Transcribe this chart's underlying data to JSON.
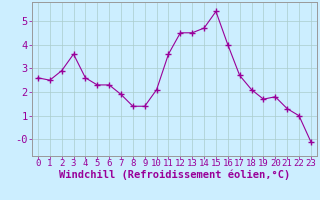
{
  "x": [
    0,
    1,
    2,
    3,
    4,
    5,
    6,
    7,
    8,
    9,
    10,
    11,
    12,
    13,
    14,
    15,
    16,
    17,
    18,
    19,
    20,
    21,
    22,
    23
  ],
  "y": [
    2.6,
    2.5,
    2.9,
    3.6,
    2.6,
    2.3,
    2.3,
    1.9,
    1.4,
    1.4,
    2.1,
    3.6,
    4.5,
    4.5,
    4.7,
    5.4,
    4.0,
    2.7,
    2.1,
    1.7,
    1.8,
    1.3,
    1.0,
    -0.1
  ],
  "line_color": "#990099",
  "marker": "+",
  "marker_size": 4,
  "bg_color": "#cceeff",
  "grid_color": "#aacccc",
  "xlabel": "Windchill (Refroidissement éolien,°C)",
  "xlabel_color": "#990099",
  "tick_color": "#990099",
  "spine_color": "#999999",
  "font_size": 6.5,
  "xlabel_fontsize": 7.5,
  "ylim": [
    -0.7,
    5.8
  ],
  "xlim": [
    -0.5,
    23.5
  ]
}
